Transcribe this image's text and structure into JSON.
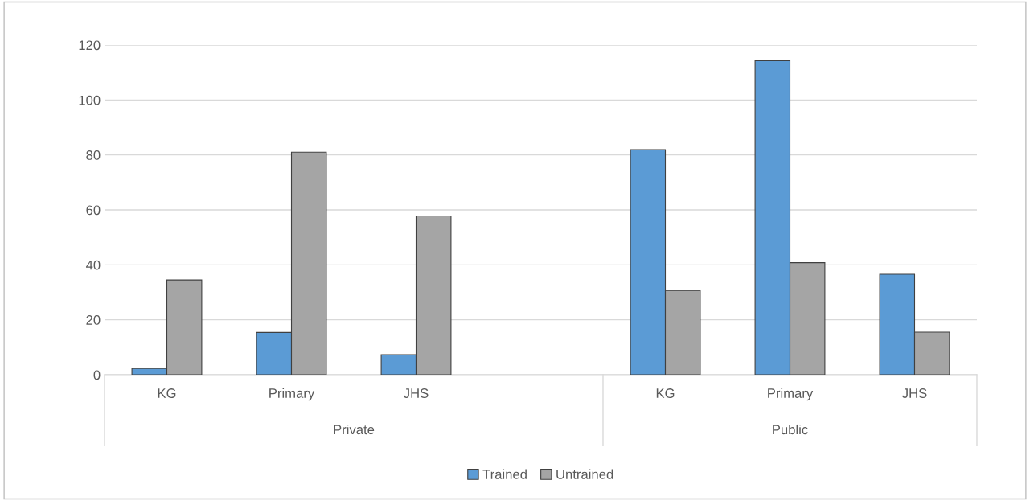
{
  "chart_data": {
    "type": "bar",
    "categories": [
      "KG",
      "Primary",
      "JHS",
      null,
      "KG",
      "Primary",
      "JHS"
    ],
    "series": [
      {
        "name": "Trained",
        "color": "#5b9bd5",
        "values": [
          2.3,
          15.4,
          7.3,
          null,
          81.9,
          114.3,
          36.6
        ]
      },
      {
        "name": "Untrained",
        "color": "#a5a5a5",
        "values": [
          34.5,
          81,
          57.8,
          null,
          30.7,
          40.8,
          15.5
        ]
      }
    ],
    "annotations": [
      "Private",
      "Public"
    ],
    "ylim": [
      0,
      120
    ],
    "yticks": [
      0,
      20,
      40,
      60,
      80,
      100,
      120
    ],
    "grid": "y",
    "legend": "bottom"
  }
}
